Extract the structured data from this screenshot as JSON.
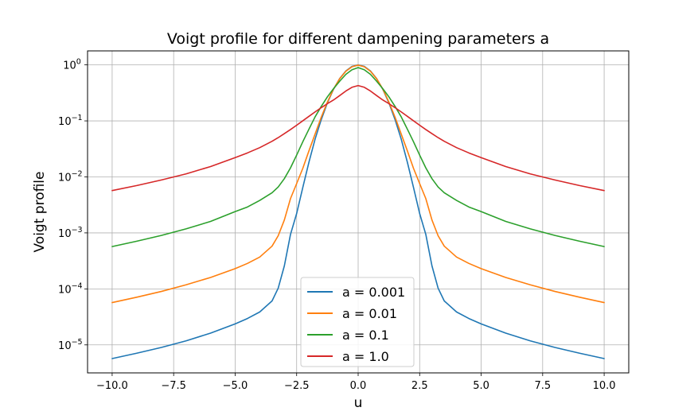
{
  "chart_data": {
    "type": "line",
    "title": "Voigt profile for different dampening parameters a",
    "xlabel": "u",
    "ylabel": "Voigt profile",
    "xlim": [
      -11,
      11
    ],
    "ylim_log10": [
      -5.5,
      0.25
    ],
    "y_scale": "log",
    "grid": true,
    "legend_position": "lower center",
    "x_ticks": [
      -10,
      -7.5,
      -5,
      -2.5,
      0,
      2.5,
      5,
      7.5,
      10
    ],
    "x_tick_labels": [
      "−10.0",
      "−7.5",
      "−5.0",
      "−2.5",
      "0.0",
      "2.5",
      "5.0",
      "7.5",
      "10.0"
    ],
    "y_ticks_exp": [
      0,
      -1,
      -2,
      -3,
      -4,
      -5
    ],
    "y_tick_base": "10",
    "y_tick_exponents": [
      "0",
      "−1",
      "−2",
      "−3",
      "−4",
      "−5"
    ],
    "x": [
      -10,
      -9,
      -8,
      -7,
      -6,
      -5,
      -4.5,
      -4,
      -3.5,
      -3.25,
      -3,
      -2.75,
      -2.5,
      -2.25,
      -2,
      -1.75,
      -1.5,
      -1.25,
      -1,
      -0.75,
      -0.5,
      -0.25,
      0,
      0.25,
      0.5,
      0.75,
      1,
      1.25,
      1.5,
      1.75,
      2,
      2.25,
      2.5,
      2.75,
      3,
      3.25,
      3.5,
      4,
      4.5,
      5,
      6,
      7,
      8,
      9,
      10
    ],
    "series": [
      {
        "name": "a = 0.001",
        "color": "#1f77b4",
        "values": [
          5.7e-06,
          7.1e-06,
          9e-06,
          1.18e-05,
          1.62e-05,
          2.37e-05,
          2.96e-05,
          3.87e-05,
          6.1e-05,
          0.000103,
          0.000258,
          0.00094,
          0.00222,
          0.00647,
          0.0183,
          0.0473,
          0.1054,
          0.2096,
          0.3679,
          0.5698,
          0.7788,
          0.9394,
          1.0,
          0.9394,
          0.7788,
          0.5698,
          0.3679,
          0.2096,
          0.1054,
          0.0473,
          0.0183,
          0.00647,
          0.00222,
          0.00094,
          0.000258,
          0.000103,
          6.1e-05,
          3.87e-05,
          2.96e-05,
          2.37e-05,
          1.62e-05,
          1.18e-05,
          9e-06,
          7.1e-06,
          5.7e-06
        ]
      },
      {
        "name": "a = 0.01",
        "color": "#ff7f0e",
        "values": [
          5.7e-05,
          7.1e-05,
          9e-05,
          0.000118,
          0.00016,
          0.00023,
          0.000285,
          0.00037,
          0.00058,
          0.00089,
          0.0017,
          0.0041,
          0.0076,
          0.0142,
          0.0292,
          0.0583,
          0.1165,
          0.2174,
          0.3711,
          0.5671,
          0.7702,
          0.9251,
          0.989,
          0.9251,
          0.7702,
          0.5671,
          0.3711,
          0.2174,
          0.1165,
          0.0583,
          0.0292,
          0.0142,
          0.0076,
          0.0041,
          0.0017,
          0.00089,
          0.00058,
          0.00037,
          0.000285,
          0.00023,
          0.00016,
          0.000118,
          9e-05,
          7.1e-05,
          5.7e-05
        ]
      },
      {
        "name": "a = 0.1",
        "color": "#2ca02c",
        "values": [
          0.00057,
          0.00071,
          0.0009,
          0.00118,
          0.0016,
          0.0024,
          0.0029,
          0.0038,
          0.0052,
          0.0066,
          0.0093,
          0.0145,
          0.0245,
          0.0424,
          0.0712,
          0.1182,
          0.1813,
          0.2686,
          0.3769,
          0.5114,
          0.6783,
          0.8173,
          0.8965,
          0.8173,
          0.6783,
          0.5114,
          0.3769,
          0.2686,
          0.1813,
          0.1182,
          0.0712,
          0.0424,
          0.0245,
          0.0145,
          0.0093,
          0.0066,
          0.0052,
          0.0038,
          0.0029,
          0.0024,
          0.0016,
          0.00118,
          0.0009,
          0.00071,
          0.00057
        ]
      },
      {
        "name": "a = 1.0",
        "color": "#d62728",
        "values": [
          0.0057,
          0.007,
          0.0088,
          0.0113,
          0.0153,
          0.0221,
          0.0268,
          0.0333,
          0.0432,
          0.0502,
          0.0592,
          0.0701,
          0.0837,
          0.1004,
          0.1206,
          0.1447,
          0.1723,
          0.2031,
          0.2364,
          0.2833,
          0.3416,
          0.398,
          0.4276,
          0.398,
          0.3416,
          0.2833,
          0.2364,
          0.2031,
          0.1723,
          0.1447,
          0.1206,
          0.1004,
          0.0837,
          0.0701,
          0.0592,
          0.0502,
          0.0432,
          0.0333,
          0.0268,
          0.0221,
          0.0153,
          0.0113,
          0.0088,
          0.007,
          0.0057
        ]
      }
    ]
  }
}
